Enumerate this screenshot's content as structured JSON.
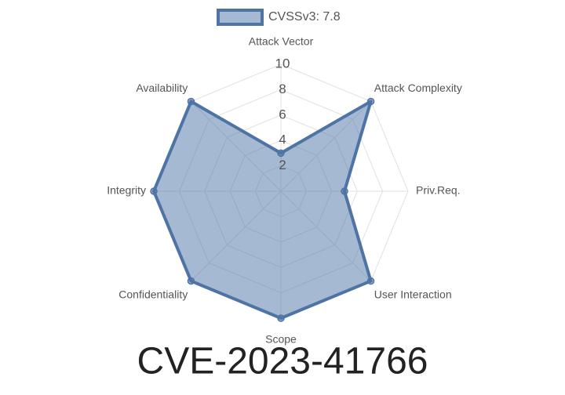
{
  "chart_data": {
    "type": "radar",
    "title": "CVE-2023-41766",
    "categories": [
      "Attack Vector",
      "Attack Complexity",
      "Priv.Req.",
      "User Interaction",
      "Scope",
      "Confidentiality",
      "Integrity",
      "Availability"
    ],
    "series": [
      {
        "name": "CVSSv3: 7.8",
        "color": "#4e73a5",
        "values": [
          3,
          10,
          5,
          10,
          10,
          10,
          10,
          10
        ]
      }
    ],
    "rlim": [
      0,
      10
    ],
    "rticks": [
      2,
      4,
      6,
      8,
      10
    ],
    "grid": true,
    "legend": "top"
  }
}
